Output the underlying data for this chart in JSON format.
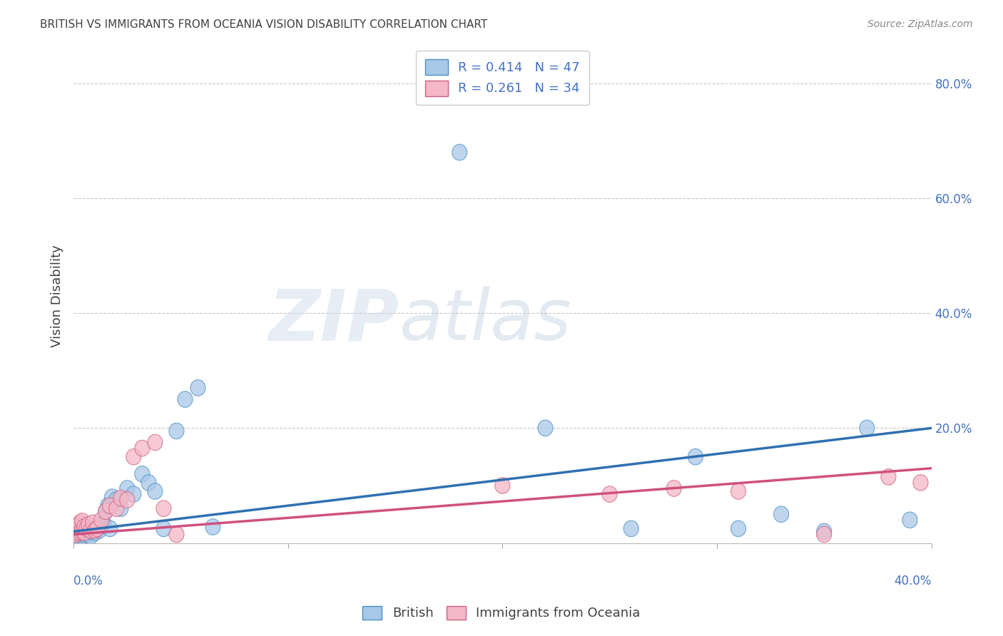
{
  "title": "BRITISH VS IMMIGRANTS FROM OCEANIA VISION DISABILITY CORRELATION CHART",
  "source": "Source: ZipAtlas.com",
  "ylabel": "Vision Disability",
  "xlim": [
    0.0,
    0.4
  ],
  "ylim": [
    0.0,
    0.86
  ],
  "ytick_vals": [
    0.0,
    0.2,
    0.4,
    0.6,
    0.8
  ],
  "ytick_labels": [
    "",
    "20.0%",
    "40.0%",
    "60.0%",
    "80.0%"
  ],
  "blue_color": "#a8c8e8",
  "blue_edge_color": "#4a90c4",
  "blue_line_color": "#3070b0",
  "pink_color": "#f4b8c8",
  "pink_edge_color": "#d06080",
  "pink_line_color": "#d05080",
  "r_blue": 0.414,
  "n_blue": 47,
  "r_pink": 0.261,
  "n_pink": 34,
  "legend_label_blue": "British",
  "legend_label_pink": "Immigrants from Oceania",
  "watermark": "ZIPatlas",
  "blue_x": [
    0.001,
    0.001,
    0.002,
    0.002,
    0.003,
    0.003,
    0.004,
    0.004,
    0.005,
    0.005,
    0.006,
    0.006,
    0.007,
    0.007,
    0.008,
    0.008,
    0.009,
    0.01,
    0.011,
    0.012,
    0.013,
    0.014,
    0.015,
    0.016,
    0.017,
    0.018,
    0.02,
    0.022,
    0.025,
    0.028,
    0.032,
    0.035,
    0.038,
    0.042,
    0.048,
    0.052,
    0.058,
    0.065,
    0.18,
    0.22,
    0.26,
    0.29,
    0.31,
    0.33,
    0.35,
    0.37,
    0.39
  ],
  "blue_y": [
    0.01,
    0.018,
    0.012,
    0.022,
    0.015,
    0.025,
    0.012,
    0.02,
    0.015,
    0.022,
    0.018,
    0.028,
    0.015,
    0.025,
    0.012,
    0.02,
    0.022,
    0.018,
    0.025,
    0.022,
    0.03,
    0.035,
    0.055,
    0.065,
    0.025,
    0.08,
    0.075,
    0.06,
    0.095,
    0.085,
    0.12,
    0.105,
    0.09,
    0.025,
    0.195,
    0.25,
    0.27,
    0.028,
    0.68,
    0.2,
    0.025,
    0.15,
    0.025,
    0.05,
    0.02,
    0.2,
    0.04
  ],
  "pink_x": [
    0.001,
    0.001,
    0.002,
    0.002,
    0.003,
    0.003,
    0.004,
    0.004,
    0.005,
    0.005,
    0.006,
    0.007,
    0.008,
    0.009,
    0.01,
    0.011,
    0.013,
    0.015,
    0.017,
    0.02,
    0.022,
    0.025,
    0.028,
    0.032,
    0.038,
    0.042,
    0.048,
    0.2,
    0.25,
    0.28,
    0.31,
    0.35,
    0.38,
    0.395
  ],
  "pink_y": [
    0.015,
    0.025,
    0.018,
    0.03,
    0.02,
    0.035,
    0.022,
    0.038,
    0.018,
    0.028,
    0.025,
    0.032,
    0.022,
    0.035,
    0.022,
    0.025,
    0.04,
    0.055,
    0.065,
    0.06,
    0.078,
    0.075,
    0.15,
    0.165,
    0.175,
    0.06,
    0.015,
    0.1,
    0.085,
    0.095,
    0.09,
    0.015,
    0.115,
    0.105
  ],
  "background_color": "#ffffff",
  "grid_color": "#c8c8c8",
  "title_color": "#404040",
  "tick_label_color": "#4472c4",
  "legend_text_color": "#4472c4"
}
